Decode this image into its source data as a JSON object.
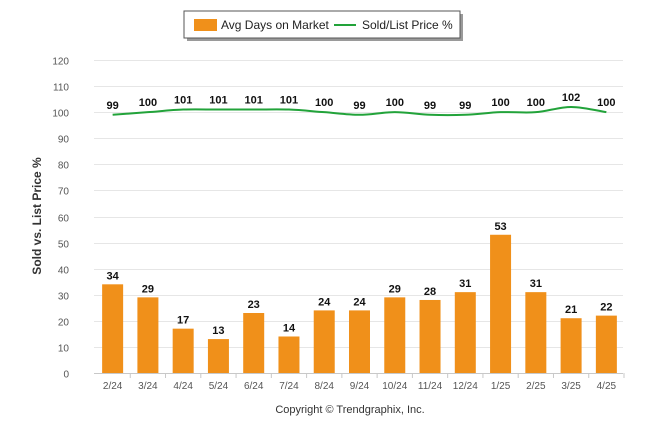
{
  "chart_data": {
    "type": "bar",
    "categories": [
      "2/24",
      "3/24",
      "4/24",
      "5/24",
      "6/24",
      "7/24",
      "8/24",
      "9/24",
      "10/24",
      "11/24",
      "12/24",
      "1/25",
      "2/25",
      "3/25",
      "4/25"
    ],
    "series": [
      {
        "name": "Avg Days on Market",
        "type": "bar",
        "color": "#f0901a",
        "values": [
          34,
          29,
          17,
          13,
          23,
          14,
          24,
          24,
          29,
          28,
          31,
          53,
          31,
          21,
          22
        ]
      },
      {
        "name": "Sold/List Price %",
        "type": "line",
        "color": "#22a33a",
        "values": [
          99,
          100,
          101,
          101,
          101,
          101,
          100,
          99,
          100,
          99,
          99,
          100,
          100,
          102,
          100
        ]
      }
    ],
    "ylabel": "Sold vs. List Price %",
    "ylim": [
      0,
      120
    ],
    "yticks": [
      0,
      10,
      20,
      30,
      40,
      50,
      60,
      70,
      80,
      90,
      100,
      110,
      120
    ],
    "grid": true,
    "legend_position": "top-center",
    "footer": "Copyright © Trendgraphix, Inc."
  }
}
